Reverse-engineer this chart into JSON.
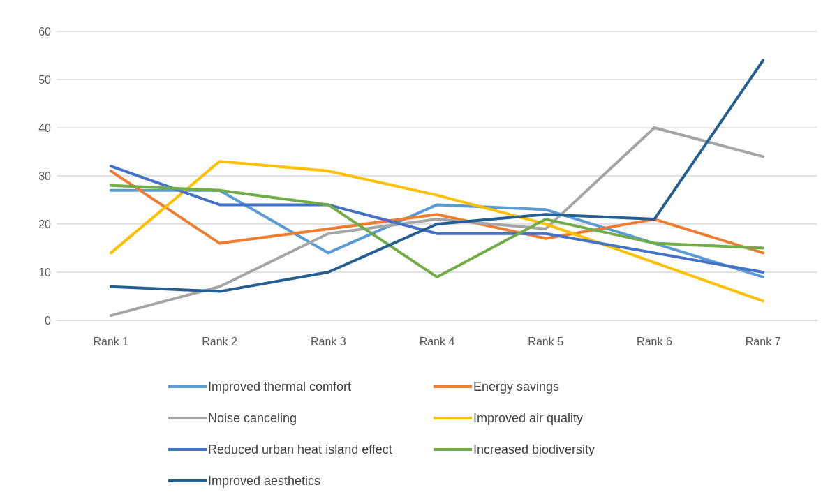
{
  "chart_data": {
    "type": "line",
    "categories": [
      "Rank 1",
      "Rank 2",
      "Rank 3",
      "Rank 4",
      "Rank 5",
      "Rank 6",
      "Rank 7"
    ],
    "ylim": [
      0,
      60
    ],
    "yticks": [
      0,
      10,
      20,
      30,
      40,
      50,
      60
    ],
    "grid": "y",
    "legend": "bottom",
    "marker": "none",
    "line_style": "solid",
    "series": [
      {
        "name": "Improved thermal comfort",
        "color": "#5b9bd5",
        "values": [
          27,
          27,
          14,
          24,
          23,
          16,
          9
        ]
      },
      {
        "name": "Energy savings",
        "color": "#ed7d31",
        "values": [
          31,
          16,
          19,
          22,
          17,
          21,
          14
        ]
      },
      {
        "name": "Noise canceling",
        "color": "#a5a5a5",
        "values": [
          1,
          7,
          18,
          21,
          19,
          40,
          34
        ]
      },
      {
        "name": "Improved air quality",
        "color": "#ffc000",
        "values": [
          14,
          33,
          31,
          26,
          20,
          12,
          4
        ]
      },
      {
        "name": "Reduced urban heat island effect",
        "color": "#4472c4",
        "values": [
          32,
          24,
          24,
          18,
          18,
          14,
          10
        ]
      },
      {
        "name": "Increased biodiversity",
        "color": "#70ad47",
        "values": [
          28,
          27,
          24,
          9,
          21,
          16,
          15
        ]
      },
      {
        "name": "Improved aesthetics",
        "color": "#255e91",
        "values": [
          7,
          6,
          10,
          20,
          22,
          21,
          54
        ]
      }
    ]
  }
}
